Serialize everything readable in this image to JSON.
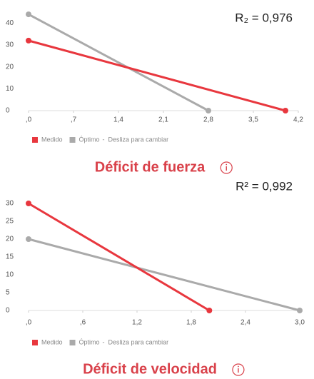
{
  "chart_data": [
    {
      "type": "line",
      "title": "Déficit de fuerza",
      "annotation": "R₂ = 0,976",
      "legend_hint": "Desliza para cambiar",
      "xlim": [
        0,
        4.2
      ],
      "ylim": [
        0,
        45
      ],
      "xticks": [
        {
          "value": 0,
          "label": ",0"
        },
        {
          "value": 0.7,
          "label": ",7"
        },
        {
          "value": 1.4,
          "label": "1,4"
        },
        {
          "value": 2.1,
          "label": "2,1"
        },
        {
          "value": 2.8,
          "label": "2,8"
        },
        {
          "value": 3.5,
          "label": "3,5"
        },
        {
          "value": 4.2,
          "label": "4,2"
        }
      ],
      "yticks": [
        0,
        10,
        20,
        30,
        40
      ],
      "series": [
        {
          "name": "Medido",
          "color": "#e8373e",
          "x": [
            0,
            4.0
          ],
          "values": [
            32,
            0
          ]
        },
        {
          "name": "Óptimo",
          "color": "#aaaaaa",
          "x": [
            0,
            2.8
          ],
          "values": [
            44,
            0
          ]
        }
      ]
    },
    {
      "type": "line",
      "title": "Déficit de velocidad",
      "annotation": "R² = 0,992",
      "legend_hint": "Desliza para cambiar",
      "xlim": [
        0,
        3.0
      ],
      "ylim": [
        0,
        31
      ],
      "xticks": [
        {
          "value": 0,
          "label": ",0"
        },
        {
          "value": 0.6,
          "label": ",6"
        },
        {
          "value": 1.2,
          "label": "1,2"
        },
        {
          "value": 1.8,
          "label": "1,8"
        },
        {
          "value": 2.4,
          "label": "2,4"
        },
        {
          "value": 3.0,
          "label": "3,0"
        }
      ],
      "yticks": [
        0,
        5,
        10,
        15,
        20,
        25,
        30
      ],
      "series": [
        {
          "name": "Medido",
          "color": "#e8373e",
          "x": [
            0,
            2.0
          ],
          "values": [
            30,
            0
          ]
        },
        {
          "name": "Óptimo",
          "color": "#aaaaaa",
          "x": [
            0,
            3.0
          ],
          "values": [
            20,
            0
          ]
        }
      ]
    }
  ]
}
